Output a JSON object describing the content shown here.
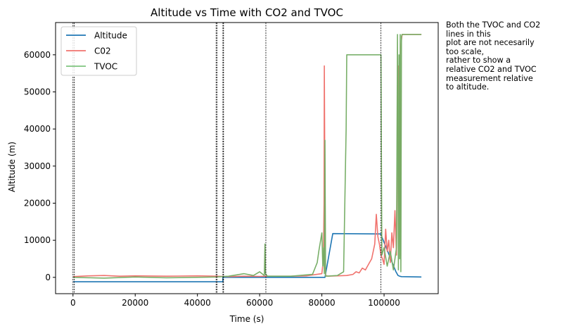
{
  "chart_data": {
    "type": "line",
    "title": "Altitude vs Time with CO2 and TVOC",
    "xlabel": "Time (s)",
    "ylabel": "Altitude (m)",
    "xlim": [
      -5600,
      117400
    ],
    "ylim": [
      -4400,
      68700
    ],
    "xticks": [
      0,
      20000,
      40000,
      60000,
      80000,
      100000
    ],
    "yticks": [
      0,
      10000,
      20000,
      30000,
      40000,
      50000,
      60000
    ],
    "grid": false,
    "legend_position": "top-left",
    "vlines": [
      0,
      400,
      46000,
      46300,
      48200,
      48400,
      62000,
      99000
    ],
    "series": [
      {
        "name": "Altitude",
        "color": "#1f77b4",
        "opacity": 1,
        "x": [
          0,
          48200,
          48200,
          81000,
          83500,
          98900,
          103800,
          104500,
          105000,
          105600,
          112000
        ],
        "y": [
          -1200,
          -1200,
          0,
          0,
          11800,
          11700,
          1500,
          500,
          300,
          200,
          100
        ]
      },
      {
        "name": "C02",
        "color": "#f0736e",
        "opacity": 1,
        "x": [
          0,
          5000,
          10000,
          15000,
          20000,
          30000,
          40000,
          46000,
          50000,
          55000,
          60000,
          62000,
          70000,
          75000,
          80000,
          80500,
          80700,
          80800,
          80900,
          81000,
          81100,
          81200,
          82000,
          85000,
          88000,
          90000,
          91000,
          92000,
          93000,
          94000,
          95000,
          96000,
          96500,
          97000,
          97500,
          98000,
          98500,
          99000,
          99500,
          100000,
          100500,
          101000,
          101500,
          102000,
          102500,
          103000,
          103500,
          104000,
          104500,
          104700,
          104900,
          105000,
          105200,
          105400,
          105600,
          105800,
          106000,
          107000,
          112000
        ],
        "y": [
          200,
          400,
          500,
          300,
          400,
          300,
          400,
          300,
          200,
          300,
          250,
          300,
          300,
          400,
          1000,
          5000,
          20000,
          57000,
          37000,
          6000,
          2000,
          500,
          300,
          400,
          500,
          800,
          1500,
          1200,
          2500,
          2000,
          3500,
          5000,
          7000,
          9000,
          17000,
          11000,
          9000,
          6000,
          5000,
          3500,
          13000,
          7000,
          10000,
          4000,
          12000,
          8000,
          18000,
          6000,
          57000,
          25000,
          47000,
          55000,
          6000,
          61000,
          64000,
          65500,
          65500,
          65500,
          65500
        ]
      },
      {
        "name": "TVOC",
        "color": "#7fc47f",
        "opacity": 1,
        "x": [
          0,
          10000,
          20000,
          30000,
          40000,
          46000,
          50000,
          55000,
          58000,
          60000,
          61500,
          61700,
          61900,
          62500,
          70000,
          77000,
          78500,
          79000,
          80000,
          80300,
          80600,
          80800,
          81000,
          81200,
          85000,
          87000,
          87800,
          88000,
          88200,
          99000,
          99300,
          100000,
          101000,
          102000,
          103000,
          103500,
          104000,
          104300,
          104600,
          104800,
          105000,
          105200,
          105400,
          105600,
          105800,
          106000,
          112000
        ],
        "y": [
          0,
          -200,
          100,
          -100,
          0,
          100,
          300,
          1000,
          500,
          1500,
          500,
          9000,
          1000,
          300,
          300,
          800,
          4000,
          7000,
          12000,
          3000,
          8000,
          1000,
          37000,
          300,
          500,
          1500,
          40000,
          60000,
          60000,
          60000,
          6000,
          8000,
          3000,
          7000,
          2000,
          5000,
          8000,
          65500,
          2000,
          60000,
          5000,
          65500,
          1500,
          65000,
          65500,
          65500,
          65500
        ]
      }
    ],
    "annotation": [
      "Both the TVOC and CO2",
      "lines in this",
      "plot are not necesarily",
      "too scale,",
      "rather to show a",
      "relative CO2 and TVOC",
      "measurement relative",
      "to altitude."
    ]
  }
}
